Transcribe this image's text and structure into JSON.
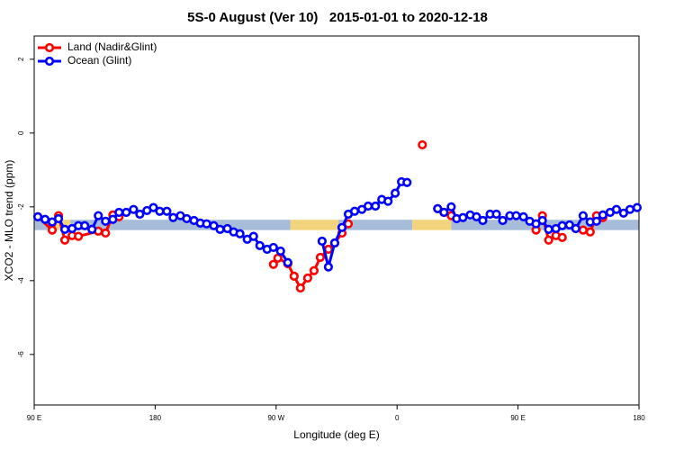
{
  "chart_data": {
    "type": "line",
    "title": "5S-0 August (Ver 10)   2015-01-01 to 2020-12-18",
    "x_label": "Longitude (deg E)",
    "y_label": "XCO2 - MLO trend (ppm)",
    "xlim": [
      90,
      540
    ],
    "xticks": [
      {
        "value": 90,
        "label": "90 E"
      },
      180,
      {
        "value": 270,
        "label": "90 W"
      },
      {
        "value": 360,
        "label": "0"
      },
      {
        "value": 450,
        "label": "90 E"
      },
      {
        "value": 540,
        "label": "180"
      }
    ],
    "ylim": [
      -7.37,
      2.63
    ],
    "yticks": [
      -6,
      -4,
      -2,
      0,
      2
    ],
    "legend": "topleft",
    "band": {
      "ylim": [
        -2.63,
        -2.35
      ],
      "segments": [
        {
          "x": [
            90,
            101.4
          ],
          "color": "#a7bcd9"
        },
        {
          "x": [
            101.4,
            116.9
          ],
          "color": "#f3d47c"
        },
        {
          "x": [
            116.9,
            280.7
          ],
          "color": "#a7bcd9"
        },
        {
          "x": [
            280.7,
            316.3
          ],
          "color": "#f3d47c"
        },
        {
          "x": [
            316.3,
            371.4
          ],
          "color": "#a7bcd9"
        },
        {
          "x": [
            371.4,
            400.3
          ],
          "color": "#f3d47c"
        },
        {
          "x": [
            400.3,
            540
          ],
          "color": "#a7bcd9"
        }
      ]
    },
    "series": [
      {
        "name": "Land (Nadir&Glint)",
        "color": "#ff0000",
        "x": [
          92.7,
          103.4,
          108.1,
          112.8,
          118.2,
          122.9,
          137.7,
          143.1,
          148.5,
          153.1,
          null,
          268.0,
          271.3,
          278.7,
          283.4,
          288.1,
          293.5,
          298.2,
          302.9,
          308.9,
          313.6,
          319.0,
          323.7,
          null,
          378.8,
          null,
          390.2,
          394.9,
          400.3,
          null,
          463.4,
          468.1,
          472.8,
          478.2,
          482.9,
          null,
          498.4,
          503.7,
          508.4,
          513.1
        ],
        "values": [
          -2.27,
          -2.63,
          -2.24,
          -2.9,
          -2.78,
          -2.8,
          -2.66,
          -2.71,
          -2.22,
          -2.27,
          null,
          -3.56,
          -3.39,
          -3.54,
          -3.88,
          -4.2,
          -3.93,
          -3.73,
          -3.37,
          -3.15,
          -2.98,
          -2.71,
          -2.46,
          null,
          -0.32,
          null,
          -2.05,
          -2.15,
          -2.24,
          null,
          -2.63,
          -2.24,
          -2.9,
          -2.78,
          -2.83,
          null,
          -2.63,
          -2.68,
          -2.24,
          -2.29
        ]
      },
      {
        "name": "Ocean (Glint)",
        "color": "#0000ff",
        "x": [
          92.7,
          98.1,
          103.4,
          108.1,
          112.8,
          118.2,
          122.9,
          127.6,
          133.0,
          137.7,
          143.1,
          148.5,
          153.1,
          158.5,
          163.9,
          168.6,
          173.9,
          178.7,
          183.4,
          188.7,
          193.4,
          198.8,
          203.5,
          208.9,
          213.6,
          218.3,
          223.6,
          228.3,
          233.7,
          238.4,
          243.1,
          248.5,
          253.2,
          257.9,
          263.3,
          268.0,
          273.3,
          278.7,
          null,
          304.2,
          308.9,
          313.6,
          319.0,
          323.7,
          328.4,
          333.8,
          338.5,
          343.9,
          348.6,
          353.3,
          358.6,
          363.3,
          367.4,
          null,
          390.2,
          394.9,
          400.3,
          404.3,
          409.0,
          414.4,
          419.1,
          423.8,
          429.2,
          433.9,
          438.6,
          443.9,
          448.6,
          454.0,
          458.7,
          463.4,
          468.1,
          472.8,
          478.2,
          482.9,
          488.3,
          493.0,
          498.4,
          503.7,
          508.4,
          513.1,
          518.5,
          523.2,
          528.5,
          533.3,
          538.6
        ],
        "values": [
          -2.27,
          -2.34,
          -2.41,
          -2.32,
          -2.61,
          -2.59,
          -2.51,
          -2.51,
          -2.61,
          -2.24,
          -2.39,
          -2.34,
          -2.15,
          -2.15,
          -2.07,
          -2.2,
          -2.1,
          -2.02,
          -2.12,
          -2.12,
          -2.29,
          -2.24,
          -2.32,
          -2.37,
          -2.44,
          -2.46,
          -2.51,
          -2.61,
          -2.59,
          -2.68,
          -2.73,
          -2.88,
          -2.8,
          -3.05,
          -3.15,
          -3.1,
          -3.2,
          -3.51,
          null,
          -2.93,
          -3.63,
          -2.98,
          -2.56,
          -2.2,
          -2.12,
          -2.07,
          -1.98,
          -1.98,
          -1.8,
          -1.85,
          -1.63,
          -1.32,
          -1.34,
          null,
          -2.05,
          -2.15,
          -2.0,
          -2.32,
          -2.29,
          -2.22,
          -2.27,
          -2.37,
          -2.2,
          -2.2,
          -2.37,
          -2.24,
          -2.24,
          -2.27,
          -2.39,
          -2.46,
          -2.37,
          -2.61,
          -2.59,
          -2.51,
          -2.49,
          -2.59,
          -2.24,
          -2.41,
          -2.39,
          -2.22,
          -2.15,
          -2.07,
          -2.17,
          -2.07,
          -2.02
        ]
      }
    ]
  }
}
